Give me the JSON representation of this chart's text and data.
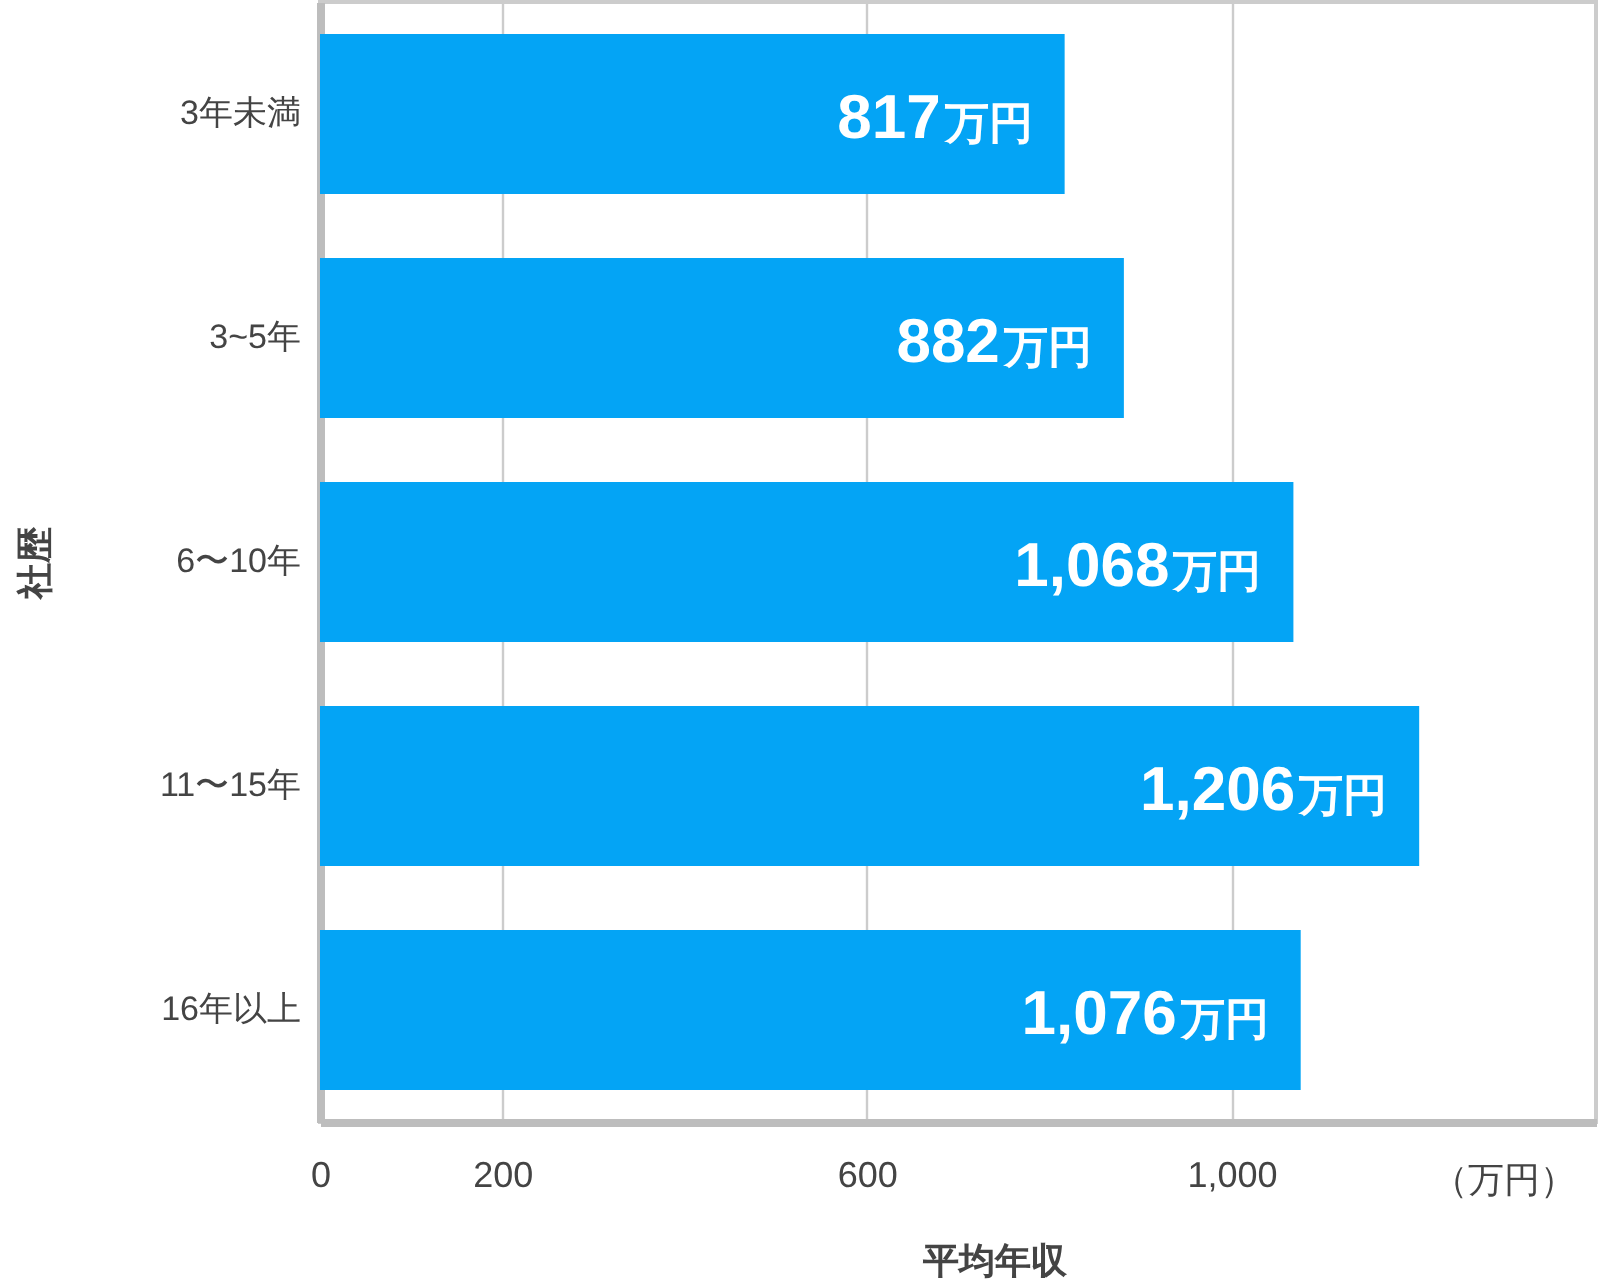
{
  "chart_data": {
    "type": "bar",
    "orientation": "horizontal",
    "xlabel": "平均年収",
    "ylabel": "社歴",
    "categories": [
      "3年未満",
      "3~5年",
      "6〜10年",
      "11〜15年",
      "16年以上"
    ],
    "values": [
      817,
      882,
      1068,
      1206,
      1076
    ],
    "value_labels": [
      "817万円",
      "882万円",
      "1,068万円",
      "1,206万円",
      "1,076万円"
    ],
    "color": "#04a4f5",
    "xlim": [
      0,
      1400
    ],
    "xticks": [
      0,
      200,
      600,
      {
        "value": 1000,
        "label": "1,000"
      }
    ],
    "grid": "x",
    "annotations": [
      "（万円）"
    ]
  }
}
